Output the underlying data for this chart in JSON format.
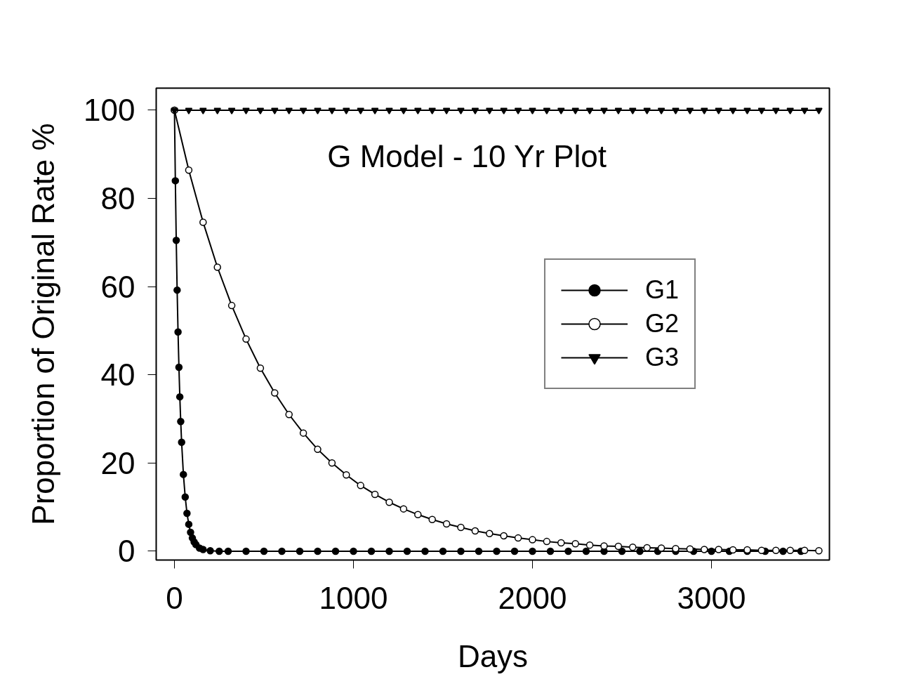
{
  "chart_data": {
    "type": "line",
    "title": "G Model - 10 Yr Plot",
    "xlabel": "Days",
    "ylabel": "Proportion of Original Rate %",
    "xlim": [
      -102,
      3659
    ],
    "ylim": [
      -2,
      105
    ],
    "xticks": [
      0,
      1000,
      2000,
      3000
    ],
    "yticks": [
      0,
      20,
      40,
      60,
      80,
      100
    ],
    "grid": false,
    "legend": "right",
    "line_style": "solid",
    "series": [
      {
        "name": "G1",
        "color": "#000000",
        "marker": "circle",
        "x": [
          0,
          5,
          10,
          15,
          20,
          25,
          30,
          35,
          40,
          50,
          60,
          70,
          80,
          90,
          100,
          110,
          120,
          140,
          160,
          200,
          250,
          300,
          400,
          500,
          600,
          700,
          800,
          900,
          1000,
          1100,
          1200,
          1300,
          1400,
          1500,
          1600,
          1700,
          1800,
          1900,
          2000,
          2100,
          2200,
          2300,
          2400,
          2500,
          2600,
          2700,
          2800,
          2900,
          3000,
          3100,
          3200,
          3300,
          3400,
          3500
        ],
        "values": [
          100,
          84,
          70.5,
          59.2,
          49.7,
          41.7,
          35,
          29.4,
          24.7,
          17.4,
          12.3,
          8.6,
          6.1,
          4.3,
          3.0,
          2.1,
          1.5,
          0.7,
          0.4,
          0.1,
          0,
          0,
          0,
          0,
          0,
          0,
          0,
          0,
          0,
          0,
          0,
          0,
          0,
          0,
          0,
          0,
          0,
          0,
          0,
          0,
          0,
          0,
          0,
          0,
          0,
          0,
          0,
          0,
          0,
          0,
          0,
          0,
          0,
          0
        ]
      },
      {
        "name": "G2",
        "color": "#000000",
        "marker": "circle_open",
        "x": [
          0,
          80,
          160,
          240,
          320,
          400,
          480,
          560,
          640,
          720,
          800,
          880,
          960,
          1040,
          1120,
          1200,
          1280,
          1360,
          1440,
          1520,
          1600,
          1680,
          1760,
          1840,
          1920,
          2000,
          2080,
          2160,
          2240,
          2320,
          2400,
          2480,
          2560,
          2640,
          2720,
          2800,
          2880,
          2960,
          3040,
          3120,
          3200,
          3280,
          3360,
          3440,
          3520,
          3600
        ],
        "values": [
          100,
          86.4,
          74.6,
          64.4,
          55.7,
          48.1,
          41.5,
          35.9,
          31.0,
          26.8,
          23.1,
          20.0,
          17.3,
          14.9,
          12.9,
          11.1,
          9.6,
          8.3,
          7.2,
          6.2,
          5.4,
          4.6,
          4.0,
          3.5,
          3.0,
          2.6,
          2.2,
          1.9,
          1.7,
          1.4,
          1.2,
          1.1,
          0.9,
          0.8,
          0.7,
          0.6,
          0.5,
          0.4,
          0.4,
          0.3,
          0.3,
          0.2,
          0.2,
          0.2,
          0.2,
          0.1
        ]
      },
      {
        "name": "G3",
        "color": "#000000",
        "marker": "triangle",
        "x": [
          0,
          80,
          160,
          240,
          320,
          400,
          480,
          560,
          640,
          720,
          800,
          880,
          960,
          1040,
          1120,
          1200,
          1280,
          1360,
          1440,
          1520,
          1600,
          1680,
          1760,
          1840,
          1920,
          2000,
          2080,
          2160,
          2240,
          2320,
          2400,
          2480,
          2560,
          2640,
          2720,
          2800,
          2880,
          2960,
          3040,
          3120,
          3200,
          3280,
          3360,
          3440,
          3520,
          3600
        ],
        "values": [
          100,
          100,
          100,
          100,
          100,
          100,
          100,
          100,
          100,
          100,
          100,
          100,
          100,
          100,
          100,
          100,
          100,
          100,
          100,
          100,
          100,
          100,
          100,
          100,
          100,
          100,
          100,
          100,
          100,
          100,
          100,
          100,
          100,
          100,
          100,
          100,
          100,
          100,
          100,
          100,
          100,
          100,
          100,
          100,
          100,
          100
        ]
      }
    ]
  }
}
